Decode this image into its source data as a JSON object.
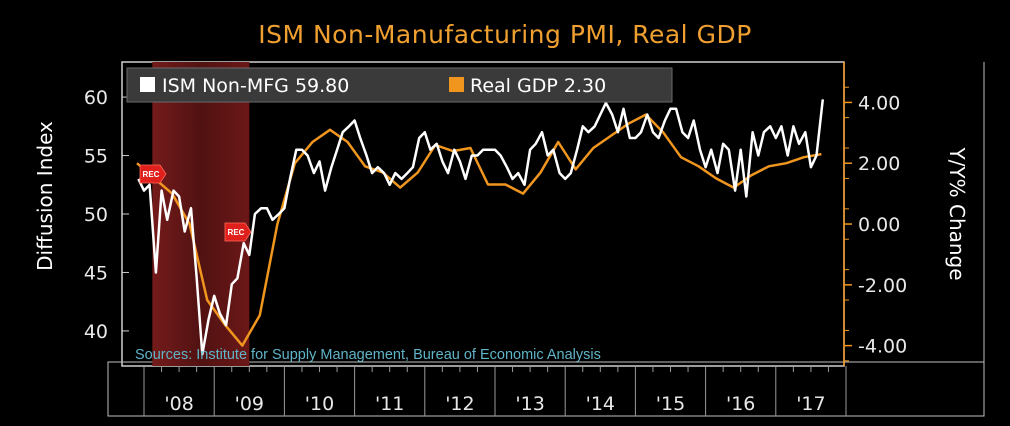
{
  "chart_data": {
    "type": "line",
    "title": "ISM Non-Manufacturing PMI, Real GDP",
    "ylabel_left": "Diffusion Index",
    "ylabel_right": "Y/Y% Change",
    "y_left_ticks": [
      "60",
      "55",
      "50",
      "45",
      "40"
    ],
    "y_right_ticks": [
      "4.00",
      "2.00",
      "0.00",
      "-2.00",
      "-4.00"
    ],
    "x_tick_labels": [
      "'08",
      "'09",
      "'10",
      "'11",
      "'12",
      "'13",
      "'14",
      "'15",
      "'16",
      "'17"
    ],
    "ylim_left": [
      37,
      63
    ],
    "ylim_right": [
      -4.67,
      5.33
    ],
    "recession_marker": "REC",
    "source": "Sources: Institute for Supply Management, Bureau of Economic Analysis",
    "colors": {
      "ism": "#ffffff",
      "gdp": "#f0961e",
      "recession": "#5a1414",
      "title": "#f0a030"
    },
    "series": [
      {
        "name": "ISM Non-MFG",
        "legend_value": "59.80",
        "axis": "left",
        "x": [
          2007.92,
          2008.0,
          2008.08,
          2008.17,
          2008.25,
          2008.33,
          2008.42,
          2008.5,
          2008.58,
          2008.67,
          2008.75,
          2008.83,
          2008.92,
          2009.0,
          2009.08,
          2009.17,
          2009.25,
          2009.33,
          2009.42,
          2009.5,
          2009.58,
          2009.67,
          2009.75,
          2009.83,
          2009.92,
          2010.0,
          2010.08,
          2010.17,
          2010.25,
          2010.33,
          2010.42,
          2010.5,
          2010.58,
          2010.67,
          2010.75,
          2010.83,
          2010.92,
          2011.0,
          2011.08,
          2011.17,
          2011.25,
          2011.33,
          2011.42,
          2011.5,
          2011.58,
          2011.67,
          2011.75,
          2011.83,
          2011.92,
          2012.0,
          2012.08,
          2012.17,
          2012.25,
          2012.33,
          2012.42,
          2012.5,
          2012.58,
          2012.67,
          2012.75,
          2012.83,
          2012.92,
          2013.0,
          2013.08,
          2013.17,
          2013.25,
          2013.33,
          2013.42,
          2013.5,
          2013.58,
          2013.67,
          2013.75,
          2013.83,
          2013.92,
          2014.0,
          2014.08,
          2014.17,
          2014.25,
          2014.33,
          2014.42,
          2014.5,
          2014.58,
          2014.67,
          2014.75,
          2014.83,
          2014.92,
          2015.0,
          2015.08,
          2015.17,
          2015.25,
          2015.33,
          2015.42,
          2015.5,
          2015.58,
          2015.67,
          2015.75,
          2015.83,
          2015.92,
          2016.0,
          2016.08,
          2016.17,
          2016.25,
          2016.33,
          2016.42,
          2016.5,
          2016.58,
          2016.67,
          2016.75,
          2016.83,
          2016.92,
          2017.0,
          2017.08,
          2017.17,
          2017.25,
          2017.33,
          2017.42,
          2017.5,
          2017.58,
          2017.67
        ],
        "values": [
          53.0,
          52.0,
          52.5,
          45.0,
          52.0,
          49.5,
          52.0,
          51.5,
          48.5,
          50.5,
          44.5,
          38.0,
          41.0,
          43.0,
          41.5,
          40.5,
          44.0,
          44.5,
          47.5,
          46.5,
          50.0,
          50.5,
          50.5,
          49.5,
          50.0,
          50.5,
          53.0,
          55.5,
          55.5,
          55.0,
          53.5,
          54.5,
          52.0,
          54.0,
          55.5,
          57.0,
          57.5,
          58.0,
          56.5,
          55.0,
          53.5,
          54.0,
          53.5,
          52.5,
          53.5,
          53.0,
          53.5,
          54.0,
          56.5,
          57.0,
          55.5,
          56.0,
          54.5,
          53.5,
          55.5,
          54.5,
          53.0,
          55.0,
          55.0,
          55.5,
          55.5,
          55.5,
          55.0,
          54.0,
          53.0,
          53.5,
          52.5,
          55.5,
          56.0,
          57.0,
          55.0,
          55.5,
          53.5,
          53.0,
          53.5,
          55.5,
          57.5,
          57.0,
          57.5,
          58.5,
          59.5,
          58.5,
          57.0,
          59.0,
          56.5,
          56.5,
          57.0,
          58.5,
          57.0,
          56.5,
          58.0,
          59.0,
          59.0,
          57.0,
          56.5,
          58.0,
          55.5,
          54.0,
          55.5,
          53.5,
          56.0,
          55.5,
          52.0,
          55.5,
          51.5,
          57.0,
          55.0,
          57.0,
          57.5,
          56.5,
          57.5,
          55.0,
          57.5,
          56.0,
          57.0,
          54.0,
          55.0,
          59.8
        ]
      },
      {
        "name": "Real GDP",
        "legend_value": "2.30",
        "axis": "right",
        "x": [
          2007.9,
          2008.15,
          2008.4,
          2008.65,
          2008.9,
          2009.15,
          2009.4,
          2009.65,
          2009.9,
          2010.15,
          2010.4,
          2010.65,
          2010.9,
          2011.15,
          2011.4,
          2011.65,
          2011.9,
          2012.15,
          2012.4,
          2012.65,
          2012.9,
          2013.15,
          2013.4,
          2013.65,
          2013.9,
          2014.15,
          2014.4,
          2014.65,
          2014.9,
          2015.15,
          2015.4,
          2015.65,
          2015.9,
          2016.15,
          2016.4,
          2016.65,
          2016.9,
          2017.15,
          2017.4,
          2017.65
        ],
        "values": [
          2.0,
          1.5,
          1.0,
          0.0,
          -2.5,
          -3.3,
          -4.0,
          -3.0,
          0.0,
          2.0,
          2.7,
          3.1,
          2.7,
          1.9,
          1.7,
          1.2,
          1.7,
          2.6,
          2.4,
          2.5,
          1.3,
          1.3,
          1.0,
          1.7,
          2.7,
          1.8,
          2.5,
          2.9,
          3.3,
          3.6,
          3.0,
          2.2,
          1.9,
          1.5,
          1.2,
          1.6,
          1.9,
          2.0,
          2.2,
          2.3
        ]
      }
    ],
    "recessions": [
      {
        "start": 2007.92,
        "end": 2009.5,
        "label": "REC"
      }
    ]
  }
}
